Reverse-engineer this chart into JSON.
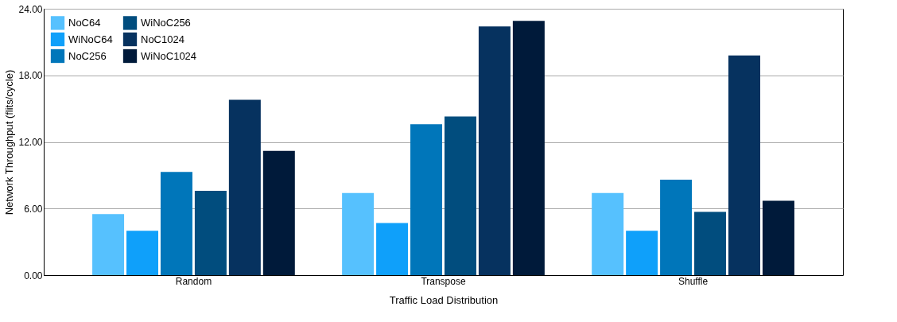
{
  "chart_data": {
    "type": "bar",
    "xlabel": "Traffic Load Distribution",
    "ylabel": "Network Throughput (flits/cycle)",
    "categories": [
      "Random",
      "Transpose",
      "Shuffle"
    ],
    "series": [
      {
        "name": "NoC64",
        "color": "#56c1fe",
        "values": [
          5.5,
          7.4,
          7.4
        ]
      },
      {
        "name": "WiNoC64",
        "color": "#0fa0fa",
        "values": [
          4.0,
          4.7,
          4.0
        ]
      },
      {
        "name": "NoC256",
        "color": "#0076ba",
        "values": [
          9.3,
          13.6,
          8.6
        ]
      },
      {
        "name": "WiNoC256",
        "color": "#014d7e",
        "values": [
          7.6,
          14.3,
          5.7
        ]
      },
      {
        "name": "NoC1024",
        "color": "#06325f",
        "values": [
          15.8,
          22.4,
          19.8
        ]
      },
      {
        "name": "WiNoC1024",
        "color": "#001a3a",
        "values": [
          11.2,
          22.9,
          6.7
        ]
      }
    ],
    "ylim": [
      0,
      24
    ],
    "yticks": [
      {
        "value": 0,
        "label": "0.00"
      },
      {
        "value": 6,
        "label": "6.00"
      },
      {
        "value": 12,
        "label": "12.00"
      },
      {
        "value": 18,
        "label": "18.00"
      },
      {
        "value": 24,
        "label": "24.00"
      }
    ],
    "grid": "y",
    "legend": "top left"
  }
}
